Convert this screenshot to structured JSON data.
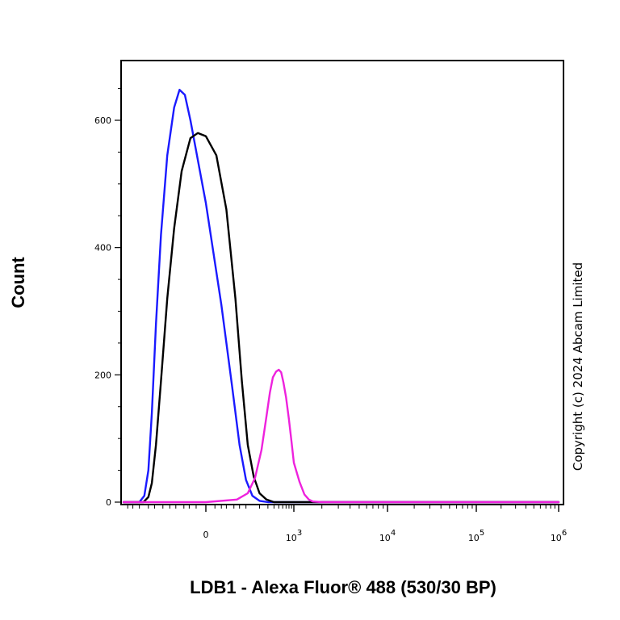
{
  "chart_data": {
    "type": "line",
    "title": "",
    "xlabel": "LDB1 - Alexa Fluor® 488 (530/30 BP)",
    "ylabel": "Count",
    "x_scale": "biexponential",
    "x_range": [
      -600,
      1000000
    ],
    "ylim": [
      0,
      690
    ],
    "y_ticks": [
      {
        "value": 0,
        "label": "0"
      },
      {
        "value": 200,
        "label": "200"
      },
      {
        "value": 400,
        "label": "400"
      },
      {
        "value": 600,
        "label": "600"
      }
    ],
    "x_ticks": [
      {
        "value": 0,
        "base": "0",
        "exp": ""
      },
      {
        "value": 1000,
        "base": "10",
        "exp": "3"
      },
      {
        "value": 10000,
        "base": "10",
        "exp": "4"
      },
      {
        "value": 100000,
        "base": "10",
        "exp": "5"
      },
      {
        "value": 1000000,
        "base": "10",
        "exp": "6"
      }
    ],
    "grid": false,
    "legend": "none",
    "series": [
      {
        "color": "#1a1aff",
        "x": [
          -600,
          -300,
          -240,
          -200,
          -170,
          -140,
          -110,
          -80,
          -55,
          -40,
          -28,
          -18,
          0,
          20,
          45,
          70,
          100,
          140,
          200,
          300,
          1000000
        ],
        "y": [
          0,
          0,
          10,
          50,
          140,
          280,
          420,
          545,
          620,
          648,
          640,
          600,
          470,
          310,
          180,
          90,
          35,
          10,
          2,
          0,
          0
        ]
      },
      {
        "color": "#000000",
        "x": [
          -600,
          -250,
          -200,
          -170,
          -140,
          -110,
          -80,
          -55,
          -35,
          -18,
          -8,
          0,
          12,
          30,
          55,
          80,
          110,
          150,
          200,
          280,
          400,
          1000000
        ],
        "y": [
          0,
          0,
          8,
          30,
          90,
          190,
          320,
          430,
          520,
          572,
          580,
          575,
          545,
          460,
          320,
          190,
          90,
          40,
          14,
          4,
          0,
          0
        ]
      },
      {
        "color": "#ee22dd",
        "x": [
          -600,
          0,
          60,
          110,
          160,
          220,
          280,
          330,
          380,
          440,
          500,
          560,
          620,
          700,
          800,
          900,
          1000,
          1150,
          1300,
          1450,
          1600,
          2000,
          1000000
        ],
        "y": [
          0,
          0,
          4,
          14,
          38,
          82,
          135,
          172,
          196,
          205,
          208,
          204,
          188,
          165,
          130,
          95,
          62,
          32,
          12,
          4,
          1,
          0,
          0
        ]
      }
    ]
  },
  "copyright": "Copyright (c) 2024 Abcam Limited"
}
